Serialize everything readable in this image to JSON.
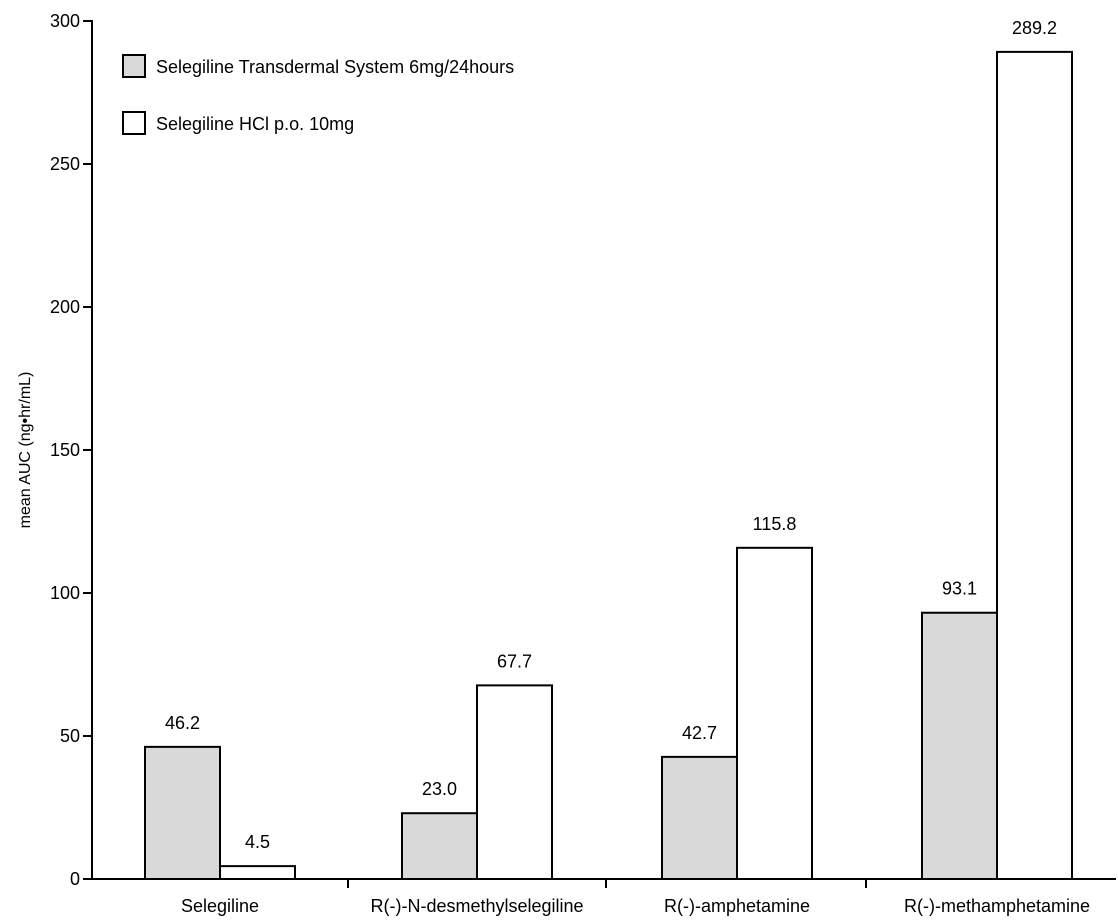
{
  "chart_data": {
    "type": "bar",
    "title": "",
    "xlabel": "",
    "ylabel": "mean AUC (ng•hr/mL)",
    "ylim": [
      0,
      300
    ],
    "yticks": [
      0,
      50,
      100,
      150,
      200,
      250,
      300
    ],
    "categories": [
      "Selegiline",
      "R(-)-N-desmethylselegiline",
      "R(-)-amphetamine",
      "R(-)-methamphetamine"
    ],
    "series": [
      {
        "name": "Selegiline Transdermal System 6mg/24hours",
        "values": [
          46.2,
          23.0,
          42.7,
          93.1
        ],
        "labels": [
          "46.2",
          "23.0",
          "42.7",
          "93.1"
        ],
        "color": "#d9d9d9"
      },
      {
        "name": "Selegiline HCl p.o. 10mg",
        "values": [
          4.5,
          67.7,
          115.8,
          289.2
        ],
        "labels": [
          "4.5",
          "67.7",
          "115.8",
          "289.2"
        ],
        "color": "#ffffff"
      }
    ],
    "legend_position": "top-left",
    "grid": false
  }
}
